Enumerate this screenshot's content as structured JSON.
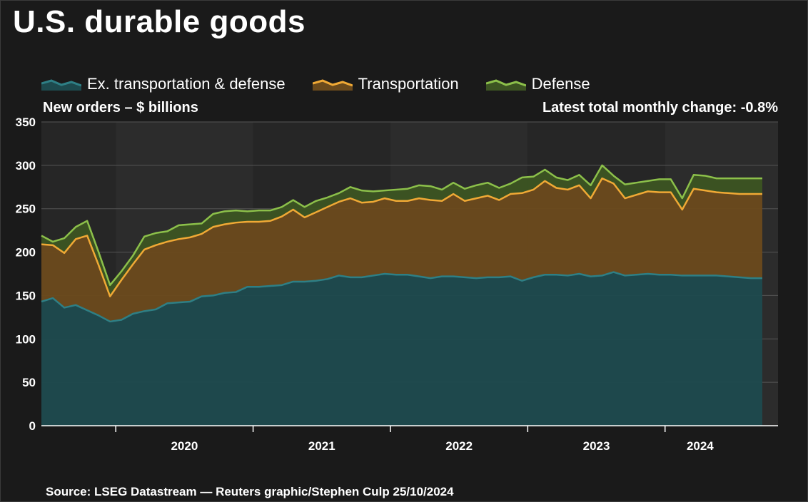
{
  "title": "U.S. durable goods",
  "subtitle_left": "New orders – $ billions",
  "subtitle_right": "Latest total monthly change: -0.8%",
  "source": "Source: LSEG Datastream — Reuters graphic/Stephen Culp 25/10/2024",
  "legend": [
    {
      "label": "Ex. transportation & defense",
      "fill": "#1d4a4e",
      "line": "#2e7f85"
    },
    {
      "label": "Transportation",
      "fill": "#6b4a1c",
      "line": "#f0a935"
    },
    {
      "label": "Defense",
      "fill": "#3c5422",
      "line": "#8cc04a"
    }
  ],
  "chart_data": {
    "type": "area",
    "stacked": true,
    "y_ticks": [
      0,
      50,
      100,
      150,
      200,
      250,
      300,
      350
    ],
    "ylim": [
      0,
      350
    ],
    "x_tick_labels": [
      "2020",
      "2021",
      "2022",
      "2023",
      "2024"
    ],
    "x_start": "2019-06",
    "x_end": "2024-09",
    "series": [
      {
        "name": "Ex. transportation & defense",
        "cumulative_top": [
          143,
          147,
          136,
          139,
          133,
          127,
          120,
          122,
          129,
          132,
          134,
          141,
          142,
          143,
          149,
          150,
          153,
          154,
          160,
          160,
          161,
          162,
          166,
          166,
          167,
          169,
          173,
          171,
          171,
          173,
          175,
          174,
          174,
          172,
          170,
          172,
          172,
          171,
          170,
          171,
          171,
          172,
          167,
          171,
          174,
          174,
          173,
          175,
          172,
          173,
          177,
          173,
          174,
          175,
          174,
          174,
          173,
          173,
          173,
          173,
          172,
          171,
          170,
          170
        ]
      },
      {
        "name": "Transportation",
        "cumulative_top": [
          209,
          208,
          199,
          215,
          219,
          185,
          149,
          168,
          186,
          203,
          208,
          212,
          215,
          217,
          221,
          229,
          232,
          234,
          235,
          235,
          236,
          241,
          249,
          240,
          246,
          252,
          258,
          262,
          257,
          258,
          262,
          259,
          259,
          262,
          260,
          259,
          267,
          259,
          262,
          265,
          260,
          267,
          268,
          272,
          282,
          274,
          272,
          277,
          262,
          285,
          279,
          262,
          266,
          270,
          269,
          269,
          249,
          273,
          271,
          269,
          268,
          267,
          267,
          267
        ]
      },
      {
        "name": "Defense",
        "cumulative_top": [
          219,
          212,
          216,
          229,
          236,
          200,
          162,
          178,
          196,
          218,
          222,
          224,
          231,
          232,
          233,
          244,
          247,
          248,
          247,
          248,
          248,
          252,
          260,
          252,
          259,
          263,
          268,
          275,
          271,
          270,
          271,
          272,
          273,
          277,
          276,
          272,
          280,
          273,
          277,
          280,
          274,
          279,
          286,
          287,
          295,
          286,
          283,
          289,
          277,
          300,
          288,
          278,
          280,
          282,
          284,
          284,
          262,
          289,
          288,
          285,
          285,
          285,
          285,
          285
        ]
      }
    ],
    "grid": true,
    "legend_position": "top"
  }
}
